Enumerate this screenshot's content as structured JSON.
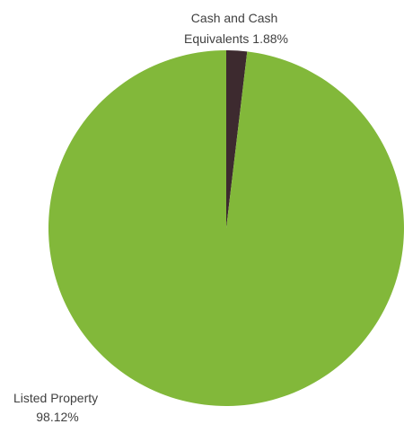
{
  "chart_data": {
    "type": "pie",
    "title": "",
    "start_angle_deg": 0,
    "direction": "clockwise",
    "legend": "none",
    "slices": [
      {
        "label_lines": [
          "Cash and Cash",
          "Equivalents 1.88%"
        ],
        "label": "Cash and Cash Equivalents",
        "value": 1.88,
        "percent_text": "1.88%",
        "color": "#3d2a2f"
      },
      {
        "label_lines": [
          "Listed Property",
          "98.12%"
        ],
        "label": "Listed Property",
        "value": 98.12,
        "percent_text": "98.12%",
        "color": "#82b83a"
      }
    ]
  }
}
